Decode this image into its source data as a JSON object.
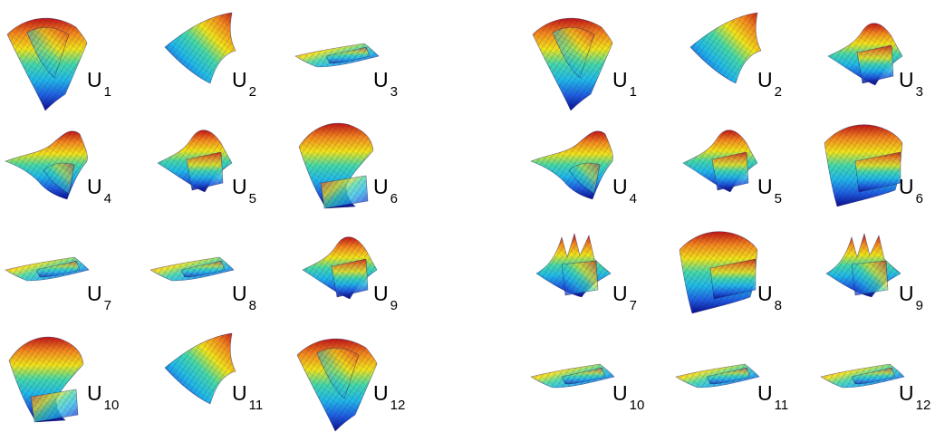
{
  "figure": {
    "panels": [
      {
        "name": "left-panel",
        "tiles": [
          {
            "letter": "U",
            "index": "1",
            "shape": "tall-ridge"
          },
          {
            "letter": "U",
            "index": "2",
            "shape": "sheet"
          },
          {
            "letter": "U",
            "index": "3",
            "shape": "flat"
          },
          {
            "letter": "U",
            "index": "4",
            "shape": "saddle"
          },
          {
            "letter": "U",
            "index": "5",
            "shape": "fold"
          },
          {
            "letter": "U",
            "index": "6",
            "shape": "tall-fold"
          },
          {
            "letter": "U",
            "index": "7",
            "shape": "flat"
          },
          {
            "letter": "U",
            "index": "8",
            "shape": "flat"
          },
          {
            "letter": "U",
            "index": "9",
            "shape": "fold"
          },
          {
            "letter": "U",
            "index": "10",
            "shape": "tall-fold"
          },
          {
            "letter": "U",
            "index": "11",
            "shape": "sheet"
          },
          {
            "letter": "U",
            "index": "12",
            "shape": "tall-ridge"
          }
        ]
      },
      {
        "name": "right-panel",
        "tiles": [
          {
            "letter": "U",
            "index": "1",
            "shape": "tall-ridge"
          },
          {
            "letter": "U",
            "index": "2",
            "shape": "sheet"
          },
          {
            "letter": "U",
            "index": "3",
            "shape": "fold"
          },
          {
            "letter": "U",
            "index": "4",
            "shape": "saddle"
          },
          {
            "letter": "U",
            "index": "5",
            "shape": "fold"
          },
          {
            "letter": "U",
            "index": "6",
            "shape": "box"
          },
          {
            "letter": "U",
            "index": "7",
            "shape": "spiky"
          },
          {
            "letter": "U",
            "index": "8",
            "shape": "box"
          },
          {
            "letter": "U",
            "index": "9",
            "shape": "spiky"
          },
          {
            "letter": "U",
            "index": "10",
            "shape": "flat"
          },
          {
            "letter": "U",
            "index": "11",
            "shape": "flat"
          },
          {
            "letter": "U",
            "index": "12",
            "shape": "flat"
          }
        ]
      }
    ],
    "colormap": [
      "#0a0a8c",
      "#1f5fe0",
      "#21b9e8",
      "#45d9a8",
      "#f2e418",
      "#f58a1c",
      "#c21414"
    ],
    "mesh_color": "#1a1a5a"
  }
}
